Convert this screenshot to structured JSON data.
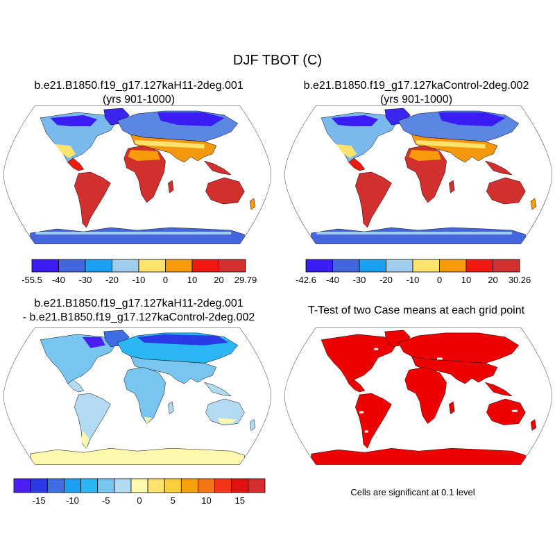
{
  "figure": {
    "title": "DJF TBOT (C)"
  },
  "panels": [
    {
      "id": "case1",
      "title_line1": "b.e21.B1850.f19_g17.127kaH11-2deg.001",
      "title_line2": "(yrs 901-1000)"
    },
    {
      "id": "case2",
      "title_line1": "b.e21.B1850.f19_g17.127kaControl-2deg.002",
      "title_line2": "(yrs 901-1000)"
    },
    {
      "id": "difference",
      "title_line1": "b.e21.B1850.f19_g17.127kaH11-2deg.001",
      "title_line2": "- b.e21.B1850.f19_g17.127kaControl-2deg.002"
    },
    {
      "id": "ttest",
      "title_line1": "T-Test of two Case means at each grid point",
      "title_line2": ""
    }
  ],
  "colorbars": {
    "case1": {
      "colors": [
        "#3a1cf5",
        "#4466dd",
        "#1aa0f0",
        "#a0cdee",
        "#fce36d",
        "#f79a0c",
        "#f0180f",
        "#d2302e"
      ],
      "labels": [
        "-55.5",
        "-40",
        "-30",
        "-20",
        "-10",
        "0",
        "10",
        "20",
        "29.79"
      ]
    },
    "case2": {
      "colors": [
        "#3a1cf5",
        "#4466dd",
        "#1aa0f0",
        "#a0cdee",
        "#fce36d",
        "#f79a0c",
        "#f0180f",
        "#d2302e"
      ],
      "labels": [
        "-42.6",
        "-40",
        "-30",
        "-20",
        "-10",
        "0",
        "10",
        "20",
        "30.26"
      ]
    },
    "difference": {
      "colors": [
        "#4b1ff4",
        "#2a3ae6",
        "#3f6ee4",
        "#1b9ff0",
        "#2bb6f6",
        "#78c6f0",
        "#b2dbf3",
        "#fef7ae",
        "#fee36e",
        "#fbcf3c",
        "#f6a20d",
        "#f57413",
        "#f5351a",
        "#e21212",
        "#d42e2e"
      ],
      "labels": [
        "-15",
        "-10",
        "-5",
        "0",
        "5",
        "10",
        "15"
      ]
    }
  },
  "significance_note": "Cells are significant at 0.1 level"
}
